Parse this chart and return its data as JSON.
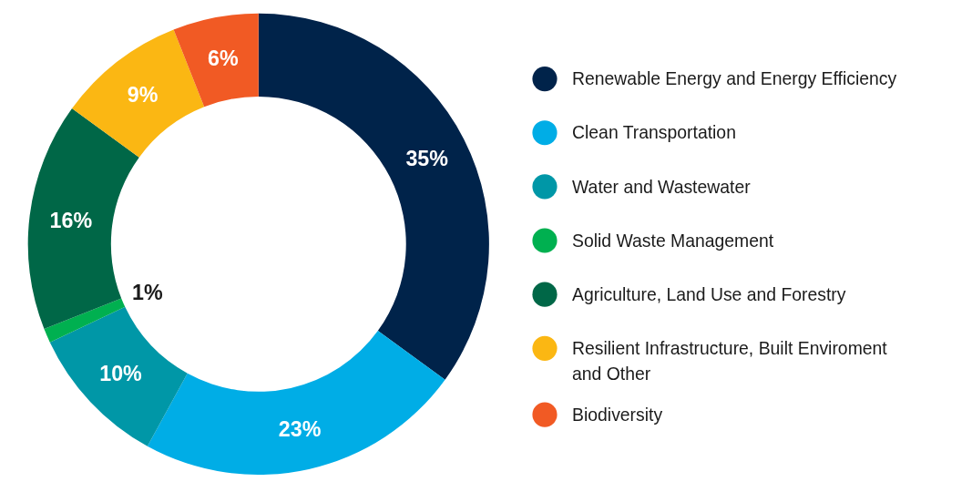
{
  "chart_data": {
    "type": "donut",
    "categories": [
      "Renewable Energy and Energy Efficiency",
      "Clean Transportation",
      "Water and Wastewater",
      "Solid Waste Management",
      "Agriculture, Land Use and Forestry",
      "Resilient Infrastructure, Built Enviroment and Other",
      "Biodiversity"
    ],
    "values": [
      35,
      23,
      10,
      1,
      16,
      9,
      6
    ],
    "colors": [
      "#00234a",
      "#00ade6",
      "#0097a7",
      "#00b050",
      "#006747",
      "#fbb713",
      "#f15a24"
    ],
    "value_labels": [
      "35%",
      "23%",
      "10%",
      "1%",
      "16%",
      "9%",
      "6%"
    ],
    "legend": "right"
  }
}
